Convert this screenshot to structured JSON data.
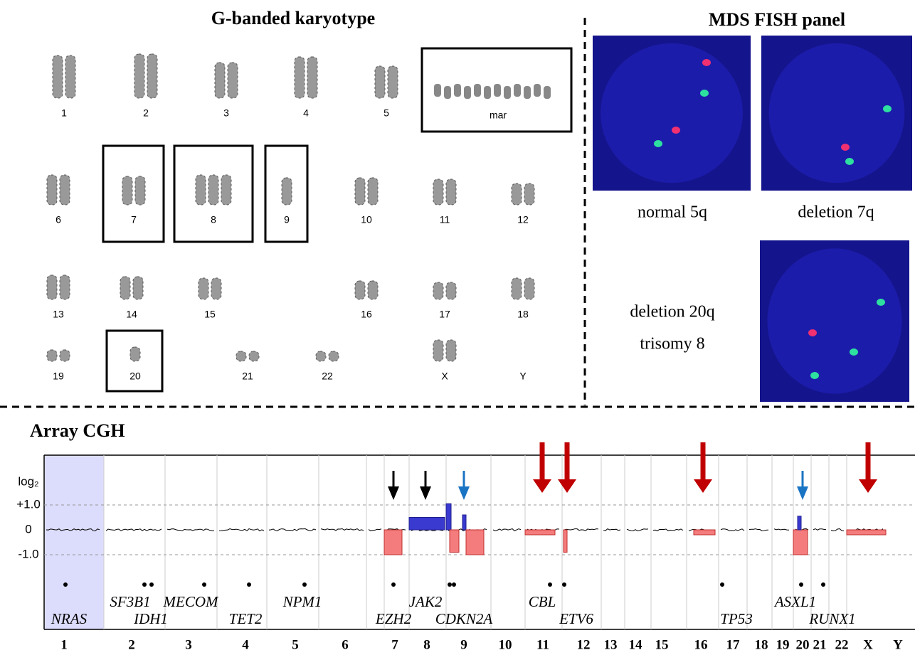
{
  "karyotype": {
    "title": "G-banded karyotype",
    "chromosomes": [
      {
        "label": "1"
      },
      {
        "label": "2"
      },
      {
        "label": "3"
      },
      {
        "label": "4"
      },
      {
        "label": "5"
      },
      {
        "label": "mar",
        "boxed": true
      },
      {
        "label": "6"
      },
      {
        "label": "7",
        "boxed": true
      },
      {
        "label": "8",
        "boxed": true
      },
      {
        "label": "9",
        "boxed": true
      },
      {
        "label": "10"
      },
      {
        "label": "11"
      },
      {
        "label": "12"
      },
      {
        "label": "13"
      },
      {
        "label": "14"
      },
      {
        "label": "15"
      },
      {
        "label": "16"
      },
      {
        "label": "17"
      },
      {
        "label": "18"
      },
      {
        "label": "19"
      },
      {
        "label": "20",
        "boxed": true
      },
      {
        "label": "21"
      },
      {
        "label": "22"
      },
      {
        "label": "X"
      },
      {
        "label": "Y"
      }
    ]
  },
  "fish": {
    "title": "MDS FISH panel",
    "labels": [
      "normal 5q",
      "deletion 7q",
      "deletion 20q",
      "trisomy 8"
    ]
  },
  "cgh": {
    "title": "Array CGH",
    "axis_label": "log₂",
    "ylim": [
      -4,
      3
    ],
    "yticks": [
      {
        "value": 1,
        "label": "+1.0"
      },
      0,
      {
        "value": -1,
        "label": "-1.0"
      }
    ],
    "chromosomes": [
      "1",
      "2",
      "3",
      "4",
      "5",
      "6",
      "7",
      "8",
      "9",
      "10",
      "11",
      "12",
      "13",
      "14",
      "15",
      "16",
      "17",
      "18",
      "19",
      "20",
      "21",
      "22",
      "X",
      "Y"
    ],
    "genes": [
      "NRAS",
      "SF3B1",
      "IDH1",
      "MECOM",
      "TET2",
      "NPM1",
      "EZH2",
      "JAK2",
      "CDKN2A",
      "CBL",
      "ETV6",
      "TP53",
      "ASXL1",
      "RUNX1"
    ],
    "segments": [
      -1.0,
      0.5,
      1.05,
      0.6,
      -0.9,
      -1.0,
      -0.2,
      -0.9,
      -0.2,
      -1.0,
      0.55,
      -0.2
    ]
  }
}
